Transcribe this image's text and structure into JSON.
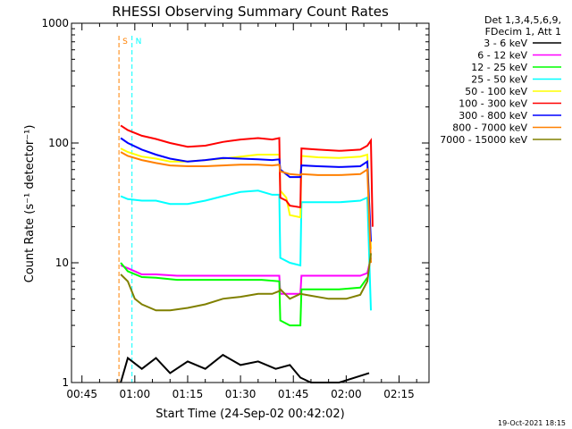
{
  "chart_data": {
    "type": "line",
    "title": "RHESSI Observing Summary Count Rates",
    "xlabel": "Start Time (24-Sep-02 00:42:02)",
    "ylabel": "Count Rate (s⁻¹ detector⁻¹)",
    "y_scale": "log",
    "ylim": [
      1,
      1000
    ],
    "xlim_minutes": [
      42.03,
      143.5
    ],
    "x_ticks": [
      {
        "label": "00:45",
        "minute": 45
      },
      {
        "label": "01:00",
        "minute": 60
      },
      {
        "label": "01:15",
        "minute": 75
      },
      {
        "label": "01:30",
        "minute": 90
      },
      {
        "label": "01:45",
        "minute": 105
      },
      {
        "label": "02:00",
        "minute": 120
      },
      {
        "label": "02:15",
        "minute": 135
      }
    ],
    "y_ticks": [
      {
        "label": "1",
        "value": 1
      },
      {
        "label": "10",
        "value": 10
      },
      {
        "label": "100",
        "value": 100
      },
      {
        "label": "1000",
        "value": 1000
      }
    ],
    "legend_header": [
      "Det 1,3,4,5,6,9,",
      "FDecim 1, Att 1"
    ],
    "legend_position": "right",
    "series": [
      {
        "name": "3 - 6 keV",
        "color": "#000000",
        "values": [
          [
            56,
            1
          ],
          [
            58,
            1.6
          ],
          [
            62,
            1.3
          ],
          [
            66,
            1.6
          ],
          [
            70,
            1.2
          ],
          [
            75,
            1.5
          ],
          [
            80,
            1.3
          ],
          [
            85,
            1.7
          ],
          [
            90,
            1.4
          ],
          [
            95,
            1.5
          ],
          [
            100,
            1.3
          ],
          [
            104,
            1.4
          ],
          [
            107,
            1.1
          ],
          [
            110,
            1
          ],
          [
            118,
            1
          ],
          [
            126.5,
            1.2
          ]
        ]
      },
      {
        "name": "6 - 12 keV",
        "color": "#ff00ff",
        "values": [
          [
            56,
            9.5
          ],
          [
            58,
            9
          ],
          [
            62,
            8
          ],
          [
            66,
            8
          ],
          [
            72,
            7.8
          ],
          [
            78,
            7.8
          ],
          [
            84,
            7.8
          ],
          [
            90,
            7.8
          ],
          [
            96,
            7.8
          ],
          [
            101,
            7.8
          ],
          [
            101.3,
            5.5
          ],
          [
            104,
            5.5
          ],
          [
            107,
            5.5
          ],
          [
            107.3,
            7.8
          ],
          [
            112,
            7.8
          ],
          [
            118,
            7.8
          ],
          [
            124,
            7.8
          ],
          [
            126,
            8.2
          ],
          [
            127,
            11
          ]
        ]
      },
      {
        "name": "12 - 25 keV",
        "color": "#00ff00",
        "values": [
          [
            56,
            10
          ],
          [
            58,
            8.5
          ],
          [
            62,
            7.6
          ],
          [
            66,
            7.5
          ],
          [
            72,
            7.2
          ],
          [
            78,
            7.2
          ],
          [
            84,
            7.2
          ],
          [
            90,
            7.2
          ],
          [
            96,
            7.2
          ],
          [
            101,
            7
          ],
          [
            101.3,
            3.3
          ],
          [
            104,
            3
          ],
          [
            107,
            3
          ],
          [
            107.3,
            6
          ],
          [
            112,
            6
          ],
          [
            118,
            6
          ],
          [
            124,
            6.2
          ],
          [
            126,
            7.5
          ]
        ]
      },
      {
        "name": "25 - 50 keV",
        "color": "#00ffff",
        "values": [
          [
            56,
            36
          ],
          [
            58,
            34
          ],
          [
            62,
            33
          ],
          [
            66,
            33
          ],
          [
            70,
            31
          ],
          [
            75,
            31
          ],
          [
            80,
            33
          ],
          [
            85,
            36
          ],
          [
            90,
            39
          ],
          [
            95,
            40
          ],
          [
            99,
            37
          ],
          [
            101,
            37
          ],
          [
            101.3,
            11
          ],
          [
            104,
            10
          ],
          [
            107,
            9.5
          ],
          [
            107.3,
            32
          ],
          [
            112,
            32
          ],
          [
            118,
            32
          ],
          [
            124,
            33
          ],
          [
            126,
            35
          ],
          [
            127,
            4
          ]
        ]
      },
      {
        "name": "50 - 100 keV",
        "color": "#ffff00",
        "values": [
          [
            56,
            90
          ],
          [
            58,
            84
          ],
          [
            62,
            77
          ],
          [
            66,
            74
          ],
          [
            70,
            70
          ],
          [
            75,
            70
          ],
          [
            80,
            72
          ],
          [
            85,
            74
          ],
          [
            90,
            77
          ],
          [
            95,
            80
          ],
          [
            99,
            80
          ],
          [
            101,
            80
          ],
          [
            101.3,
            40
          ],
          [
            103,
            35
          ],
          [
            104,
            25
          ],
          [
            107,
            24
          ],
          [
            107.3,
            78
          ],
          [
            112,
            76
          ],
          [
            118,
            75
          ],
          [
            124,
            77
          ],
          [
            126,
            80
          ],
          [
            127,
            13
          ]
        ]
      },
      {
        "name": "100 - 300 keV",
        "color": "#ff0000",
        "values": [
          [
            56,
            140
          ],
          [
            58,
            128
          ],
          [
            62,
            115
          ],
          [
            66,
            108
          ],
          [
            70,
            100
          ],
          [
            75,
            93
          ],
          [
            80,
            95
          ],
          [
            85,
            102
          ],
          [
            90,
            107
          ],
          [
            95,
            110
          ],
          [
            99,
            107
          ],
          [
            101,
            110
          ],
          [
            101.3,
            35
          ],
          [
            103,
            33
          ],
          [
            104,
            30
          ],
          [
            107,
            29
          ],
          [
            107.3,
            90
          ],
          [
            112,
            88
          ],
          [
            118,
            86
          ],
          [
            124,
            88
          ],
          [
            126,
            95
          ],
          [
            127,
            105
          ],
          [
            127.5,
            20
          ]
        ]
      },
      {
        "name": "300 - 800 keV",
        "color": "#0000ff",
        "values": [
          [
            56,
            110
          ],
          [
            58,
            100
          ],
          [
            62,
            88
          ],
          [
            66,
            80
          ],
          [
            70,
            74
          ],
          [
            75,
            70
          ],
          [
            80,
            72
          ],
          [
            85,
            75
          ],
          [
            90,
            74
          ],
          [
            95,
            73
          ],
          [
            99,
            72
          ],
          [
            101,
            73
          ],
          [
            101.3,
            60
          ],
          [
            104,
            52
          ],
          [
            107,
            52
          ],
          [
            107.3,
            65
          ],
          [
            112,
            64
          ],
          [
            118,
            63
          ],
          [
            124,
            64
          ],
          [
            126,
            70
          ],
          [
            127,
            15
          ]
        ]
      },
      {
        "name": "800 - 7000 keV",
        "color": "#ff8000",
        "values": [
          [
            56,
            84
          ],
          [
            58,
            78
          ],
          [
            62,
            72
          ],
          [
            66,
            68
          ],
          [
            70,
            65
          ],
          [
            75,
            64
          ],
          [
            80,
            64
          ],
          [
            85,
            65
          ],
          [
            90,
            66
          ],
          [
            95,
            66
          ],
          [
            99,
            65
          ],
          [
            101,
            66
          ],
          [
            101.3,
            58
          ],
          [
            104,
            55
          ],
          [
            107,
            54
          ],
          [
            107.3,
            55
          ],
          [
            112,
            54
          ],
          [
            118,
            54
          ],
          [
            124,
            55
          ],
          [
            126,
            60
          ],
          [
            127,
            10
          ]
        ]
      },
      {
        "name": "7000 - 15000 keV",
        "color": "#808000",
        "values": [
          [
            56,
            8
          ],
          [
            58,
            7
          ],
          [
            60,
            5
          ],
          [
            62,
            4.5
          ],
          [
            66,
            4
          ],
          [
            70,
            4
          ],
          [
            75,
            4.2
          ],
          [
            80,
            4.5
          ],
          [
            85,
            5
          ],
          [
            90,
            5.2
          ],
          [
            95,
            5.5
          ],
          [
            99,
            5.5
          ],
          [
            101,
            5.8
          ],
          [
            101.3,
            6
          ],
          [
            104,
            5
          ],
          [
            107,
            5.5
          ],
          [
            110,
            5.3
          ],
          [
            115,
            5
          ],
          [
            120,
            5
          ],
          [
            124,
            5.4
          ],
          [
            126,
            7
          ],
          [
            127,
            12
          ]
        ]
      }
    ],
    "annotations": [
      {
        "label": "S",
        "color": "#ff8000",
        "minute": 55.5
      },
      {
        "label": "N",
        "color": "#00ffff",
        "minute": 59.2
      }
    ]
  },
  "footer": {
    "timestamp": "19-Oct-2021 18:15"
  }
}
